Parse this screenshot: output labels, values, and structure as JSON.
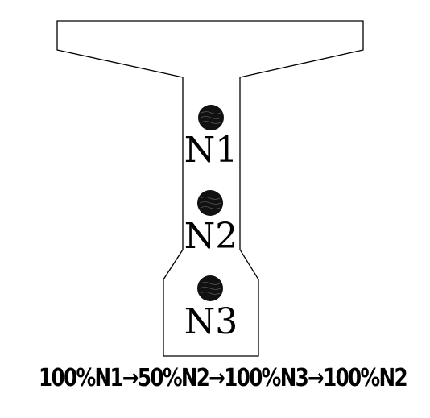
{
  "diagram": {
    "tendons": [
      {
        "id": "N1",
        "label": "N1"
      },
      {
        "id": "N2",
        "label": "N2"
      },
      {
        "id": "N3",
        "label": "N3"
      }
    ],
    "tensioning_sequence": "100%N1→50%N2→100%N3→100%N2"
  }
}
